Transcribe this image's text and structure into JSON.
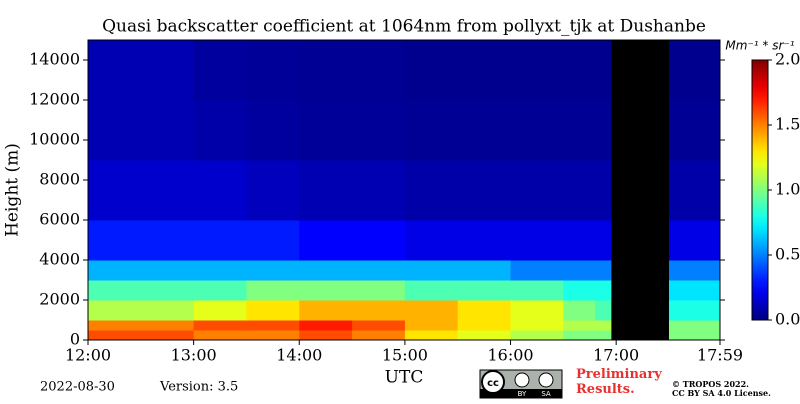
{
  "chart_data": {
    "type": "heatmap",
    "title": "Quasi backscatter coefficient at 1064nm from pollyxt_tjk at Dushanbe",
    "y_label": "Height (m)",
    "x_label": "UTC",
    "x_bins": [
      12,
      12.5,
      13,
      13.5,
      14,
      14.5,
      15,
      15.5,
      16,
      16.5,
      16.8,
      16.95,
      17.5,
      17.983
    ],
    "y_bins": [
      0,
      500,
      1000,
      2000,
      3000,
      4000,
      6000,
      9000,
      12000,
      15000
    ],
    "values": [
      [
        1.6,
        1.6,
        1.5,
        1.5,
        1.6,
        1.5,
        1.3,
        1.2,
        1.1,
        1.0,
        1.0,
        null,
        1.0
      ],
      [
        1.5,
        1.5,
        1.6,
        1.6,
        1.7,
        1.6,
        1.4,
        1.3,
        1.2,
        1.1,
        1.1,
        null,
        1.0
      ],
      [
        1.1,
        1.1,
        1.2,
        1.3,
        1.4,
        1.4,
        1.4,
        1.3,
        1.2,
        1.0,
        0.9,
        null,
        0.8
      ],
      [
        0.9,
        0.9,
        0.9,
        1.0,
        1.0,
        1.0,
        0.9,
        0.9,
        0.9,
        0.8,
        0.8,
        null,
        0.7
      ],
      [
        0.6,
        0.6,
        0.6,
        0.6,
        0.6,
        0.6,
        0.6,
        0.6,
        0.5,
        0.5,
        0.5,
        null,
        0.5
      ],
      [
        0.3,
        0.3,
        0.3,
        0.3,
        0.25,
        0.25,
        0.2,
        0.2,
        0.2,
        0.2,
        0.2,
        null,
        0.2
      ],
      [
        0.15,
        0.15,
        0.15,
        0.12,
        0.1,
        0.1,
        0.08,
        0.08,
        0.08,
        0.08,
        0.08,
        null,
        0.08
      ],
      [
        0.1,
        0.1,
        0.08,
        0.06,
        0.05,
        0.05,
        0.04,
        0.04,
        0.04,
        0.04,
        0.04,
        null,
        0.04
      ],
      [
        0.1,
        0.1,
        0.06,
        0.05,
        0.04,
        0.04,
        0.03,
        0.03,
        0.03,
        0.03,
        0.03,
        null,
        0.03
      ]
    ],
    "xlim": [
      12,
      17.983
    ],
    "xticks": [
      {
        "value": 12,
        "label": "12:00"
      },
      {
        "value": 13,
        "label": "13:00"
      },
      {
        "value": 14,
        "label": "14:00"
      },
      {
        "value": 15,
        "label": "15:00"
      },
      {
        "value": 16,
        "label": "16:00"
      },
      {
        "value": 17,
        "label": "17:00"
      },
      {
        "value": 17.983,
        "label": "17:59"
      }
    ],
    "ylim": [
      0,
      15000
    ],
    "yticks": [
      0,
      2000,
      4000,
      6000,
      8000,
      10000,
      12000,
      14000
    ],
    "clim": [
      0,
      2
    ],
    "colorbar_ticks": [
      {
        "value": 0,
        "label": "0.0"
      },
      {
        "value": 0.5,
        "label": "0.5"
      },
      {
        "value": 1,
        "label": "1.0"
      },
      {
        "value": 1.5,
        "label": "1.5"
      },
      {
        "value": 2,
        "label": "2.0"
      }
    ],
    "colorbar_label": "Mm⁻¹ * sr⁻¹",
    "background": "#000000"
  },
  "footer": {
    "date": "2022-08-30",
    "version": "Version: 3.5",
    "license_badge": [
      "cc",
      "BY",
      "SA"
    ],
    "notice": "Preliminary Results.",
    "copyright": "© TROPOS 2022.",
    "license": "CC BY SA 4.0 License."
  }
}
